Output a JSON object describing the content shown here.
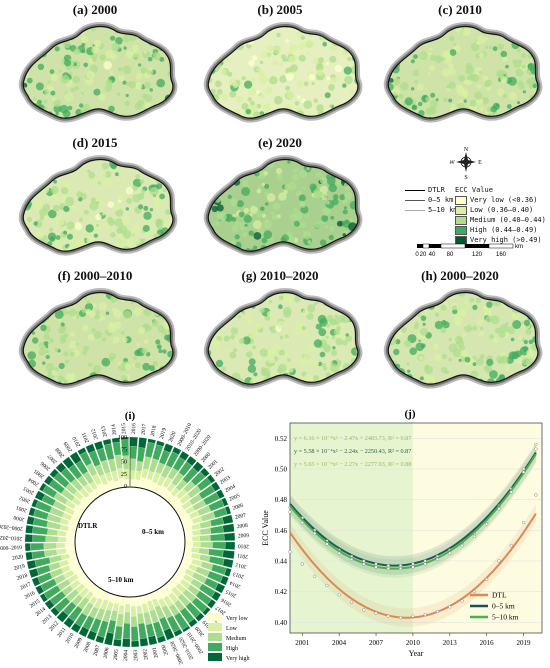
{
  "panels": [
    {
      "id": "a",
      "title": "(a) 2000",
      "density": 0.55,
      "base": "#cfe3a8"
    },
    {
      "id": "b",
      "title": "(b) 2005",
      "density": 0.35,
      "base": "#e6efbf"
    },
    {
      "id": "c",
      "title": "(c) 2010",
      "density": 0.55,
      "base": "#cfe3a8"
    },
    {
      "id": "d",
      "title": "(d) 2015",
      "density": 0.45,
      "base": "#dbe9b5"
    },
    {
      "id": "e",
      "title": "(e) 2020",
      "density": 0.7,
      "base": "#a9d08e"
    },
    {
      "id": "f",
      "title": "(f) 2000–2010",
      "density": 0.55,
      "base": "#cfe3a8"
    },
    {
      "id": "g",
      "title": "(g) 2010–2020",
      "density": 0.45,
      "base": "#dbe9b5"
    },
    {
      "id": "h",
      "title": "(h) 2000–2020",
      "density": 0.5,
      "base": "#d6e6b0"
    }
  ],
  "legend": {
    "lines": [
      {
        "label": "DTLR",
        "color": "#000000"
      },
      {
        "label": "0–5 km",
        "color": "#555555"
      },
      {
        "label": "5–10 km",
        "color": "#aaaaaa"
      }
    ],
    "title": "ECC Value",
    "classes": [
      {
        "label": "Very low (<0.36)",
        "color": "#ffffcc"
      },
      {
        "label": "Low (0.36–0.40)",
        "color": "#d9f0a3"
      },
      {
        "label": "Medium (0.40–0.44)",
        "color": "#addd8e"
      },
      {
        "label": "High (0.44–0.49)",
        "color": "#41ab5d"
      },
      {
        "label": "Very high (>0.49)",
        "color": "#005a32"
      }
    ],
    "scale_labels": [
      "0",
      "20",
      "40",
      "80",
      "120",
      "160"
    ],
    "scale_unit": "km",
    "compass": {
      "n": "N",
      "s": "S",
      "e": "E",
      "w": "W"
    }
  },
  "panel_i": {
    "title": "(i)",
    "rings": [
      "DTLR",
      "0–5 km",
      "5–10 km"
    ],
    "radial_ticks": [
      "0",
      "25",
      "50",
      "75",
      "100"
    ],
    "years": [
      "2000",
      "2001",
      "2002",
      "2003",
      "2004",
      "2005",
      "2006",
      "2007",
      "2008",
      "2009",
      "2010",
      "2011",
      "2012",
      "2013",
      "2014",
      "2015",
      "2016",
      "2017",
      "2018",
      "2019",
      "2020",
      "2000–2010",
      "2010–2020",
      "2000–2020"
    ],
    "legend": [
      "Very low",
      "Low",
      "Medium",
      "High",
      "Very high"
    ],
    "colors": [
      "#ffffcc",
      "#d9f0a3",
      "#addd8e",
      "#41ab5d",
      "#006837"
    ]
  },
  "chart_data": {
    "type": "line",
    "title": "(j)",
    "xlabel": "Year",
    "ylabel": "ECC Value",
    "xlim": [
      2000,
      2020.5
    ],
    "ylim": [
      0.393,
      0.53
    ],
    "xticks": [
      "2001",
      "2004",
      "2007",
      "2010",
      "2013",
      "2016",
      "2019"
    ],
    "yticks": [
      "0.40",
      "0.42",
      "0.44",
      "0.46",
      "0.48",
      "0.50",
      "0.52"
    ],
    "shade_split": 2010,
    "equations": [
      {
        "text": "y = 6.16 × 10⁻⁴x² − 2.47x + 2483.73, R² = 0.87",
        "color": "#9bb85a"
      },
      {
        "text": "y = 5.58 × 10⁻⁴x² − 2.24x − 2250.43, R² = 0.87",
        "color": "#2f5f4f"
      },
      {
        "text": "y = 5.65 × 10⁻⁴x² − 2.27x − 2277.93, R² = 0.88",
        "color": "#9bb85a"
      }
    ],
    "series": [
      {
        "name": "DTL",
        "color": "#d98a55",
        "fit": {
          "min_x": 2009.5,
          "min_y": 0.403,
          "a": 0.000616
        },
        "points": [
          [
            2000,
            0.446
          ],
          [
            2001,
            0.438
          ],
          [
            2002,
            0.43
          ],
          [
            2003,
            0.424
          ],
          [
            2004,
            0.418
          ],
          [
            2005,
            0.413
          ],
          [
            2006,
            0.408
          ],
          [
            2007,
            0.406
          ],
          [
            2008,
            0.404
          ],
          [
            2009,
            0.403
          ],
          [
            2010,
            0.404
          ],
          [
            2011,
            0.405
          ],
          [
            2012,
            0.407
          ],
          [
            2013,
            0.41
          ],
          [
            2014,
            0.414
          ],
          [
            2015,
            0.42
          ],
          [
            2016,
            0.428
          ],
          [
            2017,
            0.44
          ],
          [
            2018,
            0.45
          ],
          [
            2019,
            0.465
          ],
          [
            2020,
            0.483
          ]
        ]
      },
      {
        "name": "0–5 km",
        "color": "#1f4e5a",
        "fit": {
          "min_x": 2008.5,
          "min_y": 0.437,
          "a": 0.000558
        },
        "points": [
          [
            2000,
            0.475
          ],
          [
            2001,
            0.468
          ],
          [
            2002,
            0.46
          ],
          [
            2003,
            0.453
          ],
          [
            2004,
            0.447
          ],
          [
            2005,
            0.443
          ],
          [
            2006,
            0.44
          ],
          [
            2007,
            0.438
          ],
          [
            2008,
            0.437
          ],
          [
            2009,
            0.437
          ],
          [
            2010,
            0.438
          ],
          [
            2011,
            0.44
          ],
          [
            2012,
            0.443
          ],
          [
            2013,
            0.447
          ],
          [
            2014,
            0.452
          ],
          [
            2015,
            0.458
          ],
          [
            2016,
            0.466
          ],
          [
            2017,
            0.476
          ],
          [
            2018,
            0.487
          ],
          [
            2019,
            0.5
          ],
          [
            2020,
            0.516
          ]
        ]
      },
      {
        "name": "5–10 km",
        "color": "#4caf50",
        "fit": {
          "min_x": 2008.5,
          "min_y": 0.435,
          "a": 0.000565
        },
        "points": [
          [
            2000,
            0.472
          ],
          [
            2001,
            0.465
          ],
          [
            2002,
            0.458
          ],
          [
            2003,
            0.451
          ],
          [
            2004,
            0.445
          ],
          [
            2005,
            0.441
          ],
          [
            2006,
            0.438
          ],
          [
            2007,
            0.436
          ],
          [
            2008,
            0.435
          ],
          [
            2009,
            0.435
          ],
          [
            2010,
            0.436
          ],
          [
            2011,
            0.438
          ],
          [
            2012,
            0.441
          ],
          [
            2013,
            0.445
          ],
          [
            2014,
            0.45
          ],
          [
            2015,
            0.456
          ],
          [
            2016,
            0.464
          ],
          [
            2017,
            0.474
          ],
          [
            2018,
            0.485
          ],
          [
            2019,
            0.498
          ],
          [
            2020,
            0.513
          ]
        ]
      }
    ]
  }
}
